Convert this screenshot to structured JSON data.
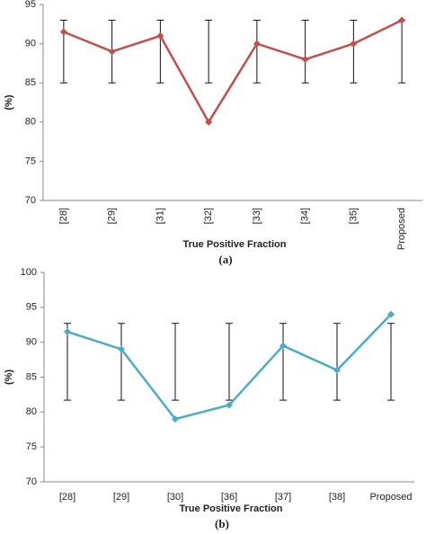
{
  "chart_data": [
    {
      "type": "line",
      "caption": "(a)",
      "x_label": "True Positive Fraction",
      "y_label": "(%)",
      "categories": [
        "[28]",
        "[29]",
        "[31]",
        "[32]",
        "[33]",
        "[34]",
        "[35]",
        "Proposed"
      ],
      "values": [
        91.5,
        89,
        91,
        80,
        90,
        88,
        90,
        93
      ],
      "lows": [
        85,
        85,
        85,
        85,
        85,
        85,
        85,
        85
      ],
      "highs": [
        93,
        93,
        93,
        93,
        93,
        93,
        93,
        93
      ],
      "color": "#c0504d",
      "ylim": [
        70,
        95
      ],
      "yticks": [
        70,
        75,
        80,
        85,
        90,
        95
      ],
      "rotate_labels": true
    },
    {
      "type": "line",
      "caption": "(b)",
      "x_label": "True Positive Fraction",
      "y_label": "(%)",
      "categories": [
        "[28]",
        "[29]",
        "[30]",
        "[36]",
        "[37]",
        "[38]",
        "Proposed"
      ],
      "values": [
        91.5,
        89,
        79,
        81,
        89.5,
        86,
        94
      ],
      "lows": [
        81.7,
        81.7,
        81.7,
        81.7,
        81.7,
        81.7,
        81.7
      ],
      "highs": [
        92.7,
        92.7,
        92.7,
        92.7,
        92.7,
        92.7,
        92.7
      ],
      "color": "#4bacc6",
      "ylim": [
        70,
        100
      ],
      "yticks": [
        70,
        75,
        80,
        85,
        90,
        95,
        100
      ],
      "rotate_labels": false
    }
  ]
}
